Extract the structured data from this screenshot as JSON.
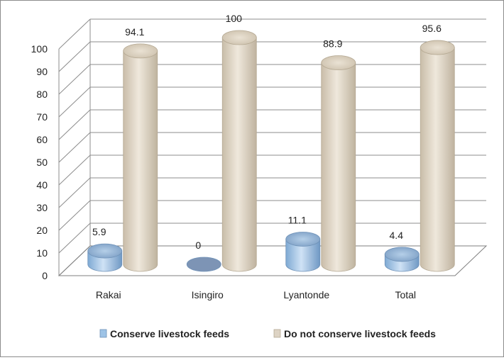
{
  "chart_data": {
    "type": "bar",
    "style": "3d-cylinder",
    "categories": [
      "Rakai",
      "Isingiro",
      "Lyantonde",
      "Total"
    ],
    "series": [
      {
        "name": "Conserve livestock feeds",
        "values": [
          5.9,
          0,
          11.1,
          4.4
        ],
        "labels": [
          "5.9",
          "0",
          "11.1",
          "4.4"
        ],
        "color": "#9dc3e6"
      },
      {
        "name": "Do not conserve livestock feeds",
        "values": [
          94.1,
          100,
          88.9,
          95.6
        ],
        "labels": [
          "94.1",
          "100",
          "88.9",
          "95.6"
        ],
        "color": "#ddd3c4"
      }
    ],
    "ylim": [
      0,
      100
    ],
    "y_ticks": [
      "0",
      "10",
      "20",
      "30",
      "40",
      "50",
      "60",
      "70",
      "80",
      "90",
      "100"
    ],
    "grid": true,
    "legend_position": "bottom",
    "title": "",
    "xlabel": "",
    "ylabel": ""
  }
}
